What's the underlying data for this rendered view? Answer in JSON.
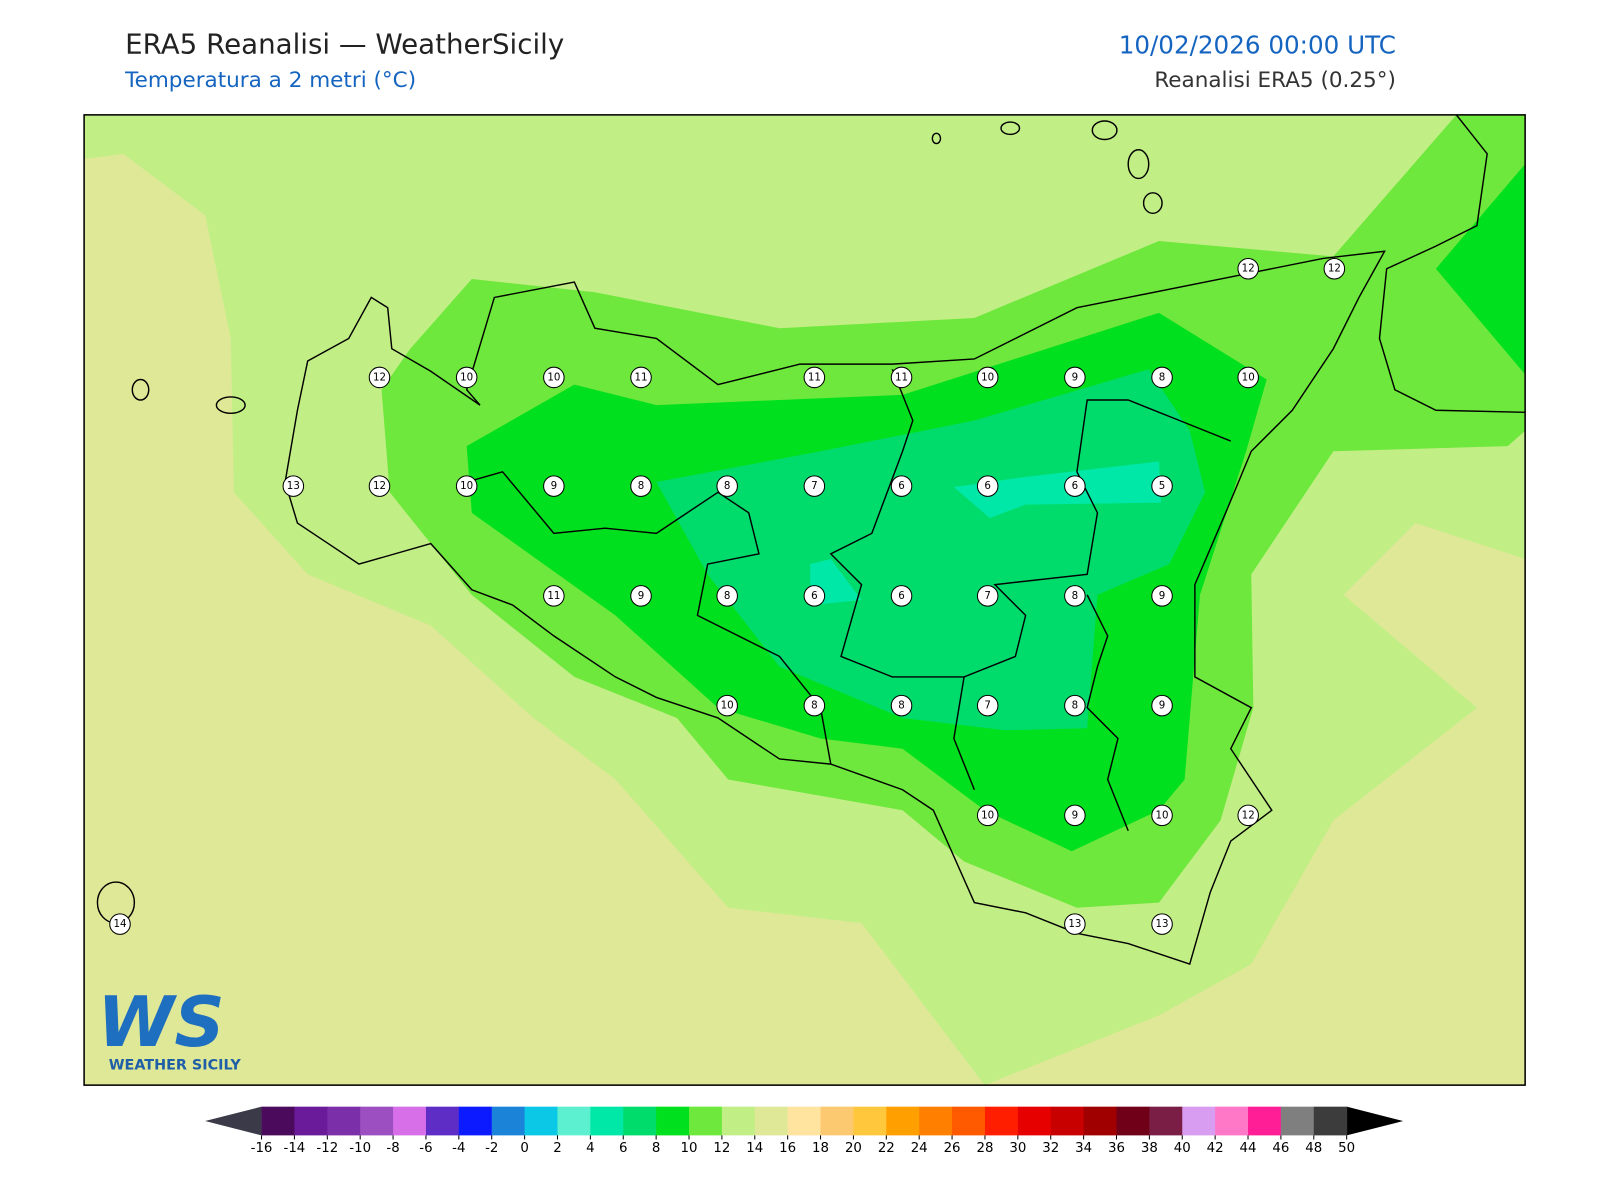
{
  "header": {
    "title": "ERA5 Reanalisi — WeatherSicily",
    "subtitle": "Temperatura a 2 metri (°C)",
    "datetime": "10/02/2026 00:00 UTC",
    "source": "Reanalisi ERA5 (0.25°)"
  },
  "stations": [
    12,
    12,
    12,
    10,
    10,
    11,
    11,
    11,
    10,
    9,
    8,
    10,
    13,
    12,
    10,
    9,
    8,
    8,
    7,
    6,
    6,
    6,
    5,
    11,
    9,
    8,
    6,
    6,
    7,
    8,
    9,
    10,
    8,
    8,
    7,
    8,
    9,
    10,
    9,
    10,
    12,
    14,
    13,
    13
  ],
  "colorbar": {
    "ticks": [
      -16,
      -14,
      -12,
      -10,
      -8,
      -6,
      -4,
      -2,
      0,
      2,
      4,
      6,
      8,
      10,
      12,
      14,
      16,
      18,
      20,
      22,
      24,
      26,
      28,
      30,
      32,
      34,
      36,
      38,
      40,
      42,
      44,
      46,
      48,
      50
    ],
    "colors": [
      "#4b0a5c",
      "#6a1b9a",
      "#7b2fa8",
      "#9c4fc0",
      "#d66fe8",
      "#5d2dc6",
      "#0b1aff",
      "#1c84d8",
      "#0ac8e6",
      "#5cf0d0",
      "#00e8a8",
      "#00dc6c",
      "#00e01e",
      "#6ee83c",
      "#c2ee86",
      "#dfe897",
      "#ffe4a0",
      "#fcc870",
      "#ffc83c",
      "#ffa000",
      "#ff8000",
      "#ff5a00",
      "#ff1e00",
      "#e60000",
      "#c80000",
      "#a00000",
      "#700018",
      "#7a1e46",
      "#d89cf0",
      "#ff78c8",
      "#ff1e96",
      "#7f7f7f",
      "#3c3c3c"
    ],
    "under_color": "#3a3a48",
    "over_color": "#000000"
  },
  "logo": {
    "mark": "WS",
    "text": "WEATHER SICILY"
  }
}
